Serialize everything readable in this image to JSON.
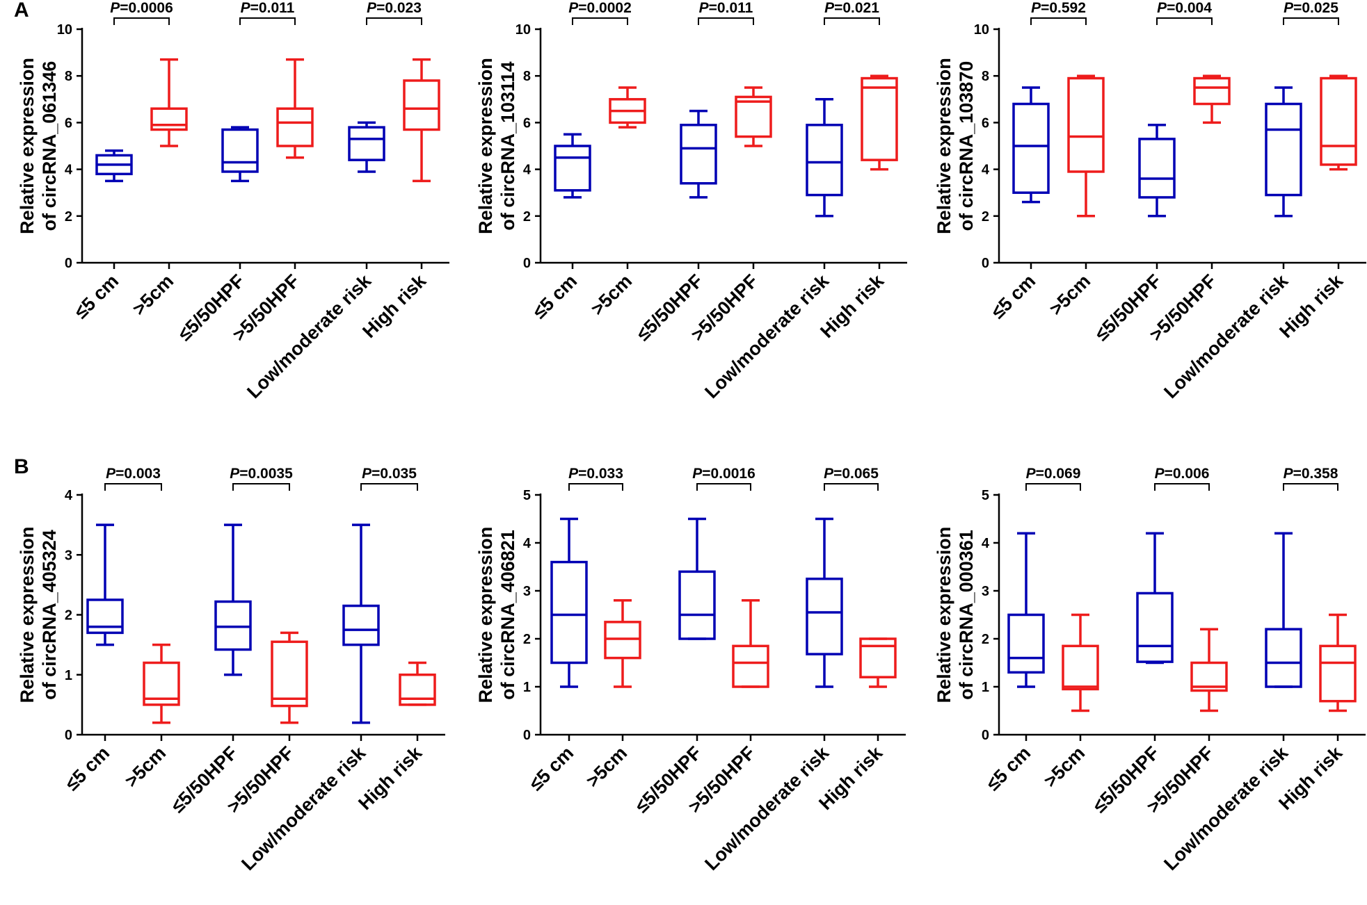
{
  "figure": {
    "panel_a_label": "A",
    "panel_b_label": "B",
    "colors": {
      "low_group": "#0000b4",
      "high_group": "#ee1c1c",
      "axis": "#000000"
    }
  },
  "chart_data": [
    {
      "type": "boxplot",
      "panel": "A",
      "title": "",
      "ylabel": "Relative expression of circRNA_061346",
      "ylabel_lines": [
        "Relative expression",
        "of circRNA_061346"
      ],
      "ylim": [
        0,
        10
      ],
      "yticks": [
        "0",
        "2",
        "4",
        "6",
        "8",
        "10"
      ],
      "categories": [
        "≤5 cm",
        ">5cm",
        "≤5/50HPF",
        ">5/50HPF",
        "Low/moderate risk",
        "High risk"
      ],
      "colors": [
        "blue",
        "red",
        "blue",
        "red",
        "blue",
        "red"
      ],
      "boxes": [
        {
          "min": 3.5,
          "q1": 3.8,
          "median": 4.2,
          "q3": 4.6,
          "max": 4.8
        },
        {
          "min": 5.0,
          "q1": 5.7,
          "median": 5.9,
          "q3": 6.6,
          "max": 8.7
        },
        {
          "min": 3.5,
          "q1": 3.9,
          "median": 4.3,
          "q3": 5.7,
          "max": 5.8
        },
        {
          "min": 4.5,
          "q1": 5.0,
          "median": 6.0,
          "q3": 6.6,
          "max": 8.7
        },
        {
          "min": 3.9,
          "q1": 4.4,
          "median": 5.3,
          "q3": 5.8,
          "max": 6.0
        },
        {
          "min": 3.5,
          "q1": 5.7,
          "median": 6.6,
          "q3": 7.8,
          "max": 8.7
        }
      ],
      "p_prefix": "P",
      "p_values": [
        "=0.0006",
        "=0.011",
        "=0.023"
      ]
    },
    {
      "type": "boxplot",
      "panel": "A",
      "title": "",
      "ylabel": "Relative expression of circRNA_103114",
      "ylabel_lines": [
        "Relative expression",
        "of circRNA_103114"
      ],
      "ylim": [
        0,
        10
      ],
      "yticks": [
        "0",
        "2",
        "4",
        "6",
        "8",
        "10"
      ],
      "categories": [
        "≤5 cm",
        ">5cm",
        "≤5/50HPF",
        ">5/50HPF",
        "Low/moderate risk",
        "High risk"
      ],
      "colors": [
        "blue",
        "red",
        "blue",
        "red",
        "blue",
        "red"
      ],
      "boxes": [
        {
          "min": 2.8,
          "q1": 3.1,
          "median": 4.5,
          "q3": 5.0,
          "max": 5.5
        },
        {
          "min": 5.8,
          "q1": 6.0,
          "median": 6.5,
          "q3": 7.0,
          "max": 7.5
        },
        {
          "min": 2.8,
          "q1": 3.4,
          "median": 4.9,
          "q3": 5.9,
          "max": 6.5
        },
        {
          "min": 5.0,
          "q1": 5.4,
          "median": 6.9,
          "q3": 7.1,
          "max": 7.5
        },
        {
          "min": 2.0,
          "q1": 2.9,
          "median": 4.3,
          "q3": 5.9,
          "max": 7.0
        },
        {
          "min": 4.0,
          "q1": 4.4,
          "median": 7.5,
          "q3": 7.9,
          "max": 8.0
        }
      ],
      "p_prefix": "P",
      "p_values": [
        "=0.0002",
        "=0.011",
        "=0.021"
      ]
    },
    {
      "type": "boxplot",
      "panel": "A",
      "title": "",
      "ylabel": "Relative expression of circRNA_103870",
      "ylabel_lines": [
        "Relative expression",
        "of circRNA_103870"
      ],
      "ylim": [
        0,
        10
      ],
      "yticks": [
        "0",
        "2",
        "4",
        "6",
        "8",
        "10"
      ],
      "categories": [
        "≤5 cm",
        ">5cm",
        "≤5/50HPF",
        ">5/50HPF",
        "Low/moderate risk",
        "High risk"
      ],
      "colors": [
        "blue",
        "red",
        "blue",
        "red",
        "blue",
        "red"
      ],
      "boxes": [
        {
          "min": 2.6,
          "q1": 3.0,
          "median": 5.0,
          "q3": 6.8,
          "max": 7.5
        },
        {
          "min": 2.0,
          "q1": 3.9,
          "median": 5.4,
          "q3": 7.9,
          "max": 8.0
        },
        {
          "min": 2.0,
          "q1": 2.8,
          "median": 3.6,
          "q3": 5.3,
          "max": 5.9
        },
        {
          "min": 6.0,
          "q1": 6.8,
          "median": 7.5,
          "q3": 7.9,
          "max": 8.0
        },
        {
          "min": 2.0,
          "q1": 2.9,
          "median": 5.7,
          "q3": 6.8,
          "max": 7.5
        },
        {
          "min": 4.0,
          "q1": 4.2,
          "median": 5.0,
          "q3": 7.9,
          "max": 8.0
        }
      ],
      "p_prefix": "P",
      "p_values": [
        "=0.592",
        "=0.004",
        "=0.025"
      ]
    },
    {
      "type": "boxplot",
      "panel": "B",
      "title": "",
      "ylabel": "Relative expression of circRNA_405324",
      "ylabel_lines": [
        "Relative expression",
        "of circRNA_405324"
      ],
      "ylim": [
        0,
        4
      ],
      "yticks": [
        "0",
        "1",
        "2",
        "3",
        "4"
      ],
      "categories": [
        "≤5 cm",
        ">5cm",
        "≤5/50HPF",
        ">5/50HPF",
        "Low/moderate risk",
        "High risk"
      ],
      "colors": [
        "blue",
        "red",
        "blue",
        "red",
        "blue",
        "red"
      ],
      "boxes": [
        {
          "min": 1.5,
          "q1": 1.7,
          "median": 1.8,
          "q3": 2.25,
          "max": 3.5
        },
        {
          "min": 0.2,
          "q1": 0.5,
          "median": 0.6,
          "q3": 1.2,
          "max": 1.5
        },
        {
          "min": 1.0,
          "q1": 1.42,
          "median": 1.8,
          "q3": 2.22,
          "max": 3.5
        },
        {
          "min": 0.2,
          "q1": 0.48,
          "median": 0.6,
          "q3": 1.55,
          "max": 1.7
        },
        {
          "min": 0.2,
          "q1": 1.5,
          "median": 1.75,
          "q3": 2.15,
          "max": 3.5
        },
        {
          "min": 0.5,
          "q1": 0.5,
          "median": 0.6,
          "q3": 1.0,
          "max": 1.2
        }
      ],
      "p_prefix": "P",
      "p_values": [
        "=0.003",
        "=0.0035",
        "=0.035"
      ]
    },
    {
      "type": "boxplot",
      "panel": "B",
      "title": "",
      "ylabel": "Relative expression of circRNA_406821",
      "ylabel_lines": [
        "Relative expression",
        "of circRNA_406821"
      ],
      "ylim": [
        0,
        5
      ],
      "yticks": [
        "0",
        "1",
        "2",
        "3",
        "4",
        "5"
      ],
      "categories": [
        "≤5 cm",
        ">5cm",
        "≤5/50HPF",
        ">5/50HPF",
        "Low/moderate risk",
        "High risk"
      ],
      "colors": [
        "blue",
        "red",
        "blue",
        "red",
        "blue",
        "red"
      ],
      "boxes": [
        {
          "min": 1.0,
          "q1": 1.5,
          "median": 2.5,
          "q3": 3.6,
          "max": 4.5
        },
        {
          "min": 1.0,
          "q1": 1.6,
          "median": 2.0,
          "q3": 2.35,
          "max": 2.8
        },
        {
          "min": 2.0,
          "q1": 2.0,
          "median": 2.5,
          "q3": 3.4,
          "max": 4.5
        },
        {
          "min": 1.0,
          "q1": 1.0,
          "median": 1.5,
          "q3": 1.85,
          "max": 2.8
        },
        {
          "min": 1.0,
          "q1": 1.68,
          "median": 2.55,
          "q3": 3.25,
          "max": 4.5
        },
        {
          "min": 1.0,
          "q1": 1.2,
          "median": 1.85,
          "q3": 2.0,
          "max": 2.0
        }
      ],
      "p_prefix": "P",
      "p_values": [
        "=0.033",
        "=0.0016",
        "=0.065"
      ]
    },
    {
      "type": "boxplot",
      "panel": "B",
      "title": "",
      "ylabel": "Relative expression of circRNA_000361",
      "ylabel_lines": [
        "Relative expression",
        "of circRNA_000361"
      ],
      "ylim": [
        0,
        5
      ],
      "yticks": [
        "0",
        "1",
        "2",
        "3",
        "4",
        "5"
      ],
      "categories": [
        "≤5 cm",
        ">5cm",
        "≤5/50HPF",
        ">5/50HPF",
        "Low/moderate risk",
        "High risk"
      ],
      "colors": [
        "blue",
        "red",
        "blue",
        "red",
        "blue",
        "red"
      ],
      "boxes": [
        {
          "min": 1.0,
          "q1": 1.3,
          "median": 1.6,
          "q3": 2.5,
          "max": 4.2
        },
        {
          "min": 0.5,
          "q1": 0.95,
          "median": 1.0,
          "q3": 1.85,
          "max": 2.5
        },
        {
          "min": 1.5,
          "q1": 1.52,
          "median": 1.85,
          "q3": 2.95,
          "max": 4.2
        },
        {
          "min": 0.5,
          "q1": 0.92,
          "median": 1.0,
          "q3": 1.5,
          "max": 2.2
        },
        {
          "min": 1.0,
          "q1": 1.0,
          "median": 1.5,
          "q3": 2.2,
          "max": 4.2
        },
        {
          "min": 0.5,
          "q1": 0.7,
          "median": 1.5,
          "q3": 1.85,
          "max": 2.5
        }
      ],
      "p_prefix": "P",
      "p_values": [
        "=0.069",
        "=0.006",
        "=0.358"
      ]
    }
  ]
}
